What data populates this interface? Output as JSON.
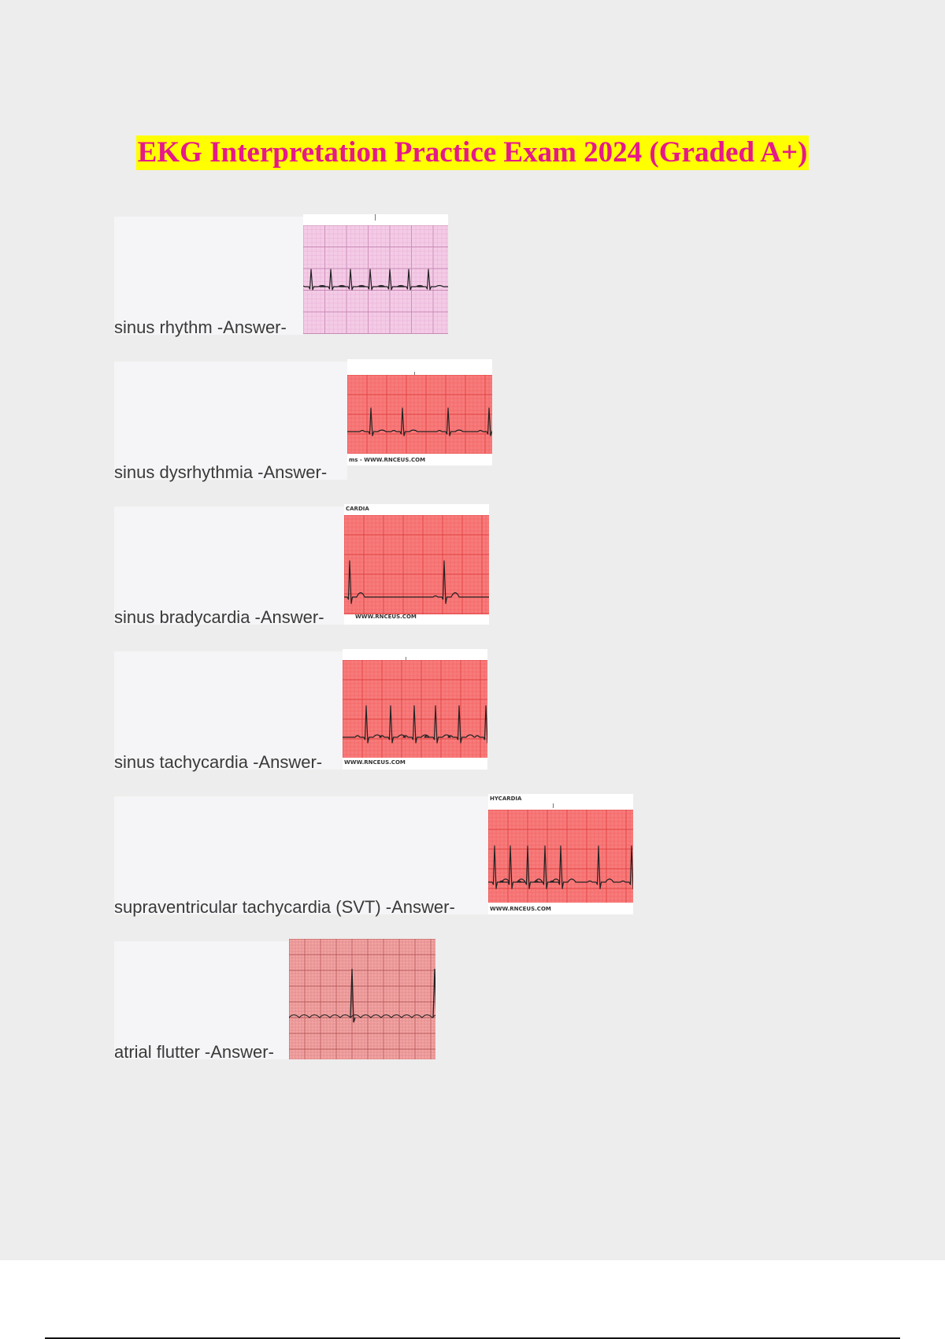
{
  "document": {
    "title": "EKG Interpretation Practice Exam 2024 (Graded A+)"
  },
  "entries": [
    {
      "label": "sinus rhythm -Answer-",
      "strip_caption_top": "",
      "strip_caption_bottom": ""
    },
    {
      "label": "sinus dysrhythmia -Answer-",
      "strip_caption_top": "",
      "strip_caption_bottom": "ms - WWW.RNCEUS.COM"
    },
    {
      "label": "sinus bradycardia -Answer-",
      "strip_caption_top": "CARDIA",
      "strip_caption_bottom": "WWW.RNCEUS.COM"
    },
    {
      "label": "sinus tachycardia -Answer-",
      "strip_caption_top": "",
      "strip_caption_bottom": "WWW.RNCEUS.COM"
    },
    {
      "label": "supraventricular tachycardia (SVT) -Answer-",
      "strip_caption_top": "HYCARDIA",
      "strip_caption_bottom": "WWW.RNCEUS.COM"
    },
    {
      "label": "atrial flutter -Answer-",
      "strip_caption_top": "",
      "strip_caption_bottom": ""
    }
  ],
  "colors": {
    "title_text": "#e6188a",
    "title_highlight": "#ffff00",
    "strip_pink": "#f4cbe6",
    "strip_red": "#f77b7b",
    "strip_flutter": "#f2a3a3",
    "ecg_trace": "#222222"
  }
}
